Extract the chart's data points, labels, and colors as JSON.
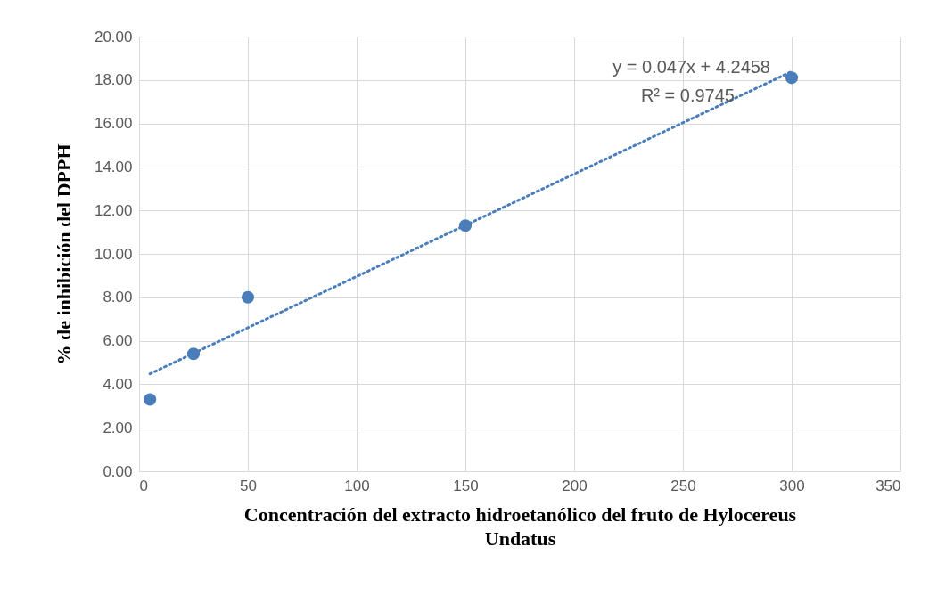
{
  "chart_data": {
    "type": "scatter",
    "xlabel": "Concentración del extracto hidroetanólico del fruto de Hylocereus Undatus",
    "ylabel": "% de inhibición  del DPPH",
    "annotations": [
      "y = 0.047x + 4.2458",
      "R² = 0.9745"
    ],
    "series": [
      {
        "color": "#4a7ebb",
        "marker": "circle",
        "x": [
          5,
          25,
          50,
          150,
          300
        ],
        "values": [
          3.3,
          5.4,
          8.0,
          11.3,
          18.1
        ]
      },
      {
        "type": "line",
        "color": "#4a7ebb",
        "line_style": "dotted",
        "marker": "none",
        "x": [
          5,
          300
        ],
        "values": [
          4.48,
          18.39
        ]
      }
    ],
    "xlim": [
      0,
      350
    ],
    "xticks": [
      0,
      50,
      100,
      150,
      200,
      250,
      300,
      350
    ],
    "ylim": [
      0,
      20
    ],
    "yticks": [
      {
        "value": 0,
        "label": "0.00"
      },
      {
        "value": 2,
        "label": "2.00"
      },
      {
        "value": 4,
        "label": "4.00"
      },
      {
        "value": 6,
        "label": "6.00"
      },
      {
        "value": 8,
        "label": "8.00"
      },
      {
        "value": 10,
        "label": "10.00"
      },
      {
        "value": 12,
        "label": "12.00"
      },
      {
        "value": 14,
        "label": "14.00"
      },
      {
        "value": 16,
        "label": "16.00"
      },
      {
        "value": 18,
        "label": "18.00"
      },
      {
        "value": 20,
        "label": "20.00"
      }
    ],
    "grid": true
  }
}
